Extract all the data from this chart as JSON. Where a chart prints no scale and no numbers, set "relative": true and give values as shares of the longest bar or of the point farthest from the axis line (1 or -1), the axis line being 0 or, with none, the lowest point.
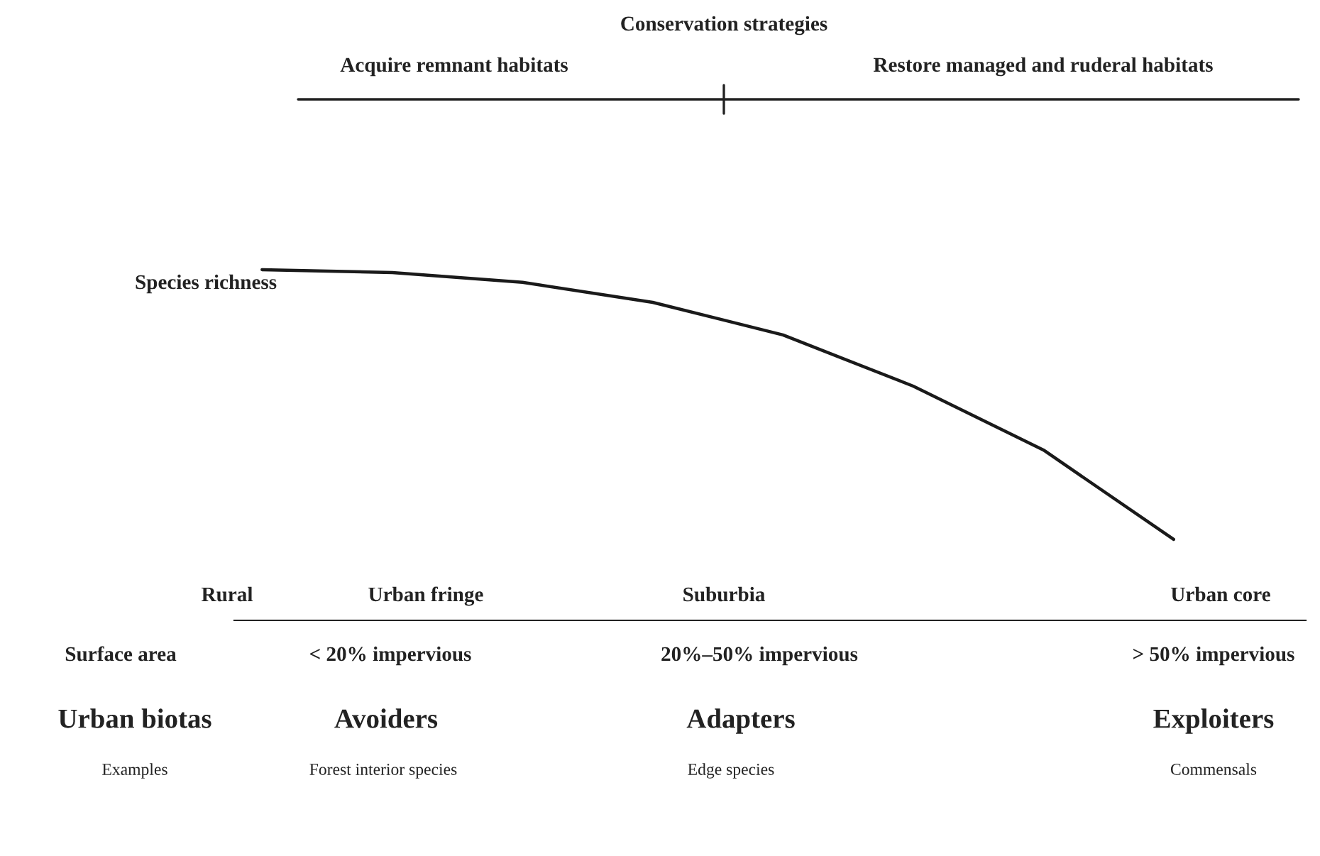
{
  "chart_data": {
    "type": "line",
    "relative": true,
    "title": "Conservation strategies",
    "ylabel": "Species richness",
    "categories": [
      null,
      null,
      null,
      null,
      null,
      null,
      null,
      null
    ],
    "series": [
      {
        "color": "#1a1a1a",
        "values": [
          1.0,
          0.992,
          0.964,
          0.907,
          0.814,
          0.668,
          0.486,
          0.231
        ]
      }
    ],
    "annotations": [
      "Acquire remnant habitats",
      "Restore managed and ruderal habitats",
      "Rural",
      "Urban fringe",
      "Suburbia",
      "Urban core",
      "Surface area",
      "< 20% impervious",
      "20%–50% impervious",
      "> 50% impervious",
      "Urban biotas",
      "Avoiders",
      "Adapters",
      "Exploiters",
      "Examples",
      "Forest interior species",
      "Edge species",
      "Commensals"
    ],
    "grid": false,
    "legend": false,
    "marker": "none",
    "line_style": "solid"
  }
}
